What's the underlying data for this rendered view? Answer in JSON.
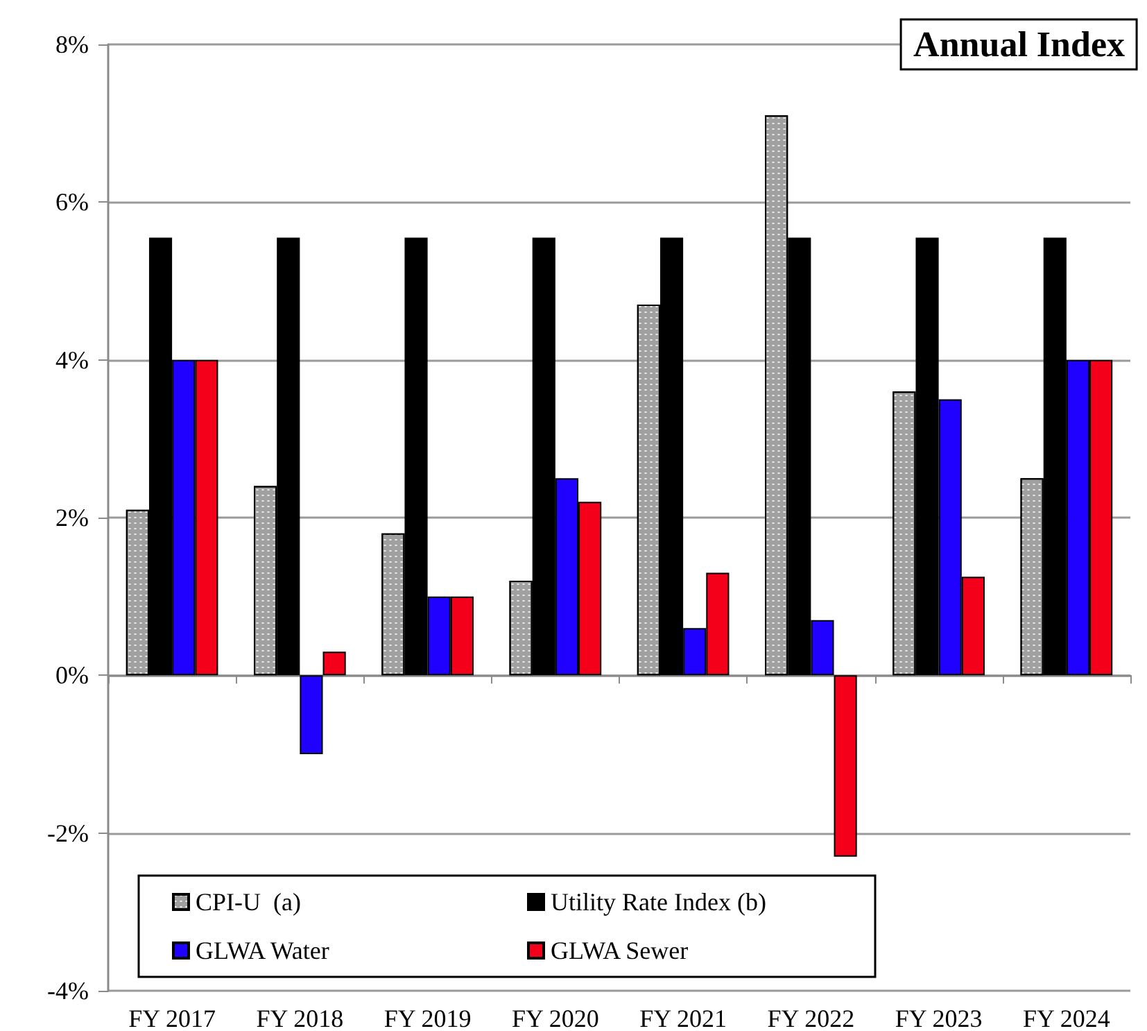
{
  "chart_data": {
    "type": "bar",
    "title": "Annual Index",
    "categories": [
      "FY 2017",
      "FY 2018",
      "FY 2019",
      "FY 2020",
      "FY 2021",
      "FY 2022",
      "FY 2023",
      "FY 2024"
    ],
    "series": [
      {
        "name": "CPI-U  (a)",
        "color": "#a0a0a0",
        "values": [
          2.1,
          2.4,
          1.8,
          1.2,
          4.7,
          7.1,
          3.6,
          2.5
        ]
      },
      {
        "name": "Utility Rate Index (b)",
        "color": "#000000",
        "values": [
          5.55,
          5.55,
          5.55,
          5.55,
          5.55,
          5.55,
          5.55,
          5.55
        ]
      },
      {
        "name": "GLWA Water",
        "color": "#2000ff",
        "values": [
          4.0,
          -1.0,
          1.0,
          2.5,
          0.6,
          0.7,
          3.5,
          4.0
        ]
      },
      {
        "name": "GLWA Sewer",
        "color": "#f5001a",
        "values": [
          4.0,
          0.3,
          1.0,
          2.2,
          1.3,
          -2.3,
          1.25,
          4.0
        ]
      }
    ],
    "ylim": [
      -4,
      8
    ],
    "yticks": [
      {
        "value": -4,
        "label": "-4%"
      },
      {
        "value": -2,
        "label": "-2%"
      },
      {
        "value": 0,
        "label": "0%"
      },
      {
        "value": 2,
        "label": "2%"
      },
      {
        "value": 4,
        "label": "4%"
      },
      {
        "value": 6,
        "label": "6%"
      },
      {
        "value": 8,
        "label": "8%"
      }
    ],
    "grid": "y",
    "legend": "bottom left"
  }
}
